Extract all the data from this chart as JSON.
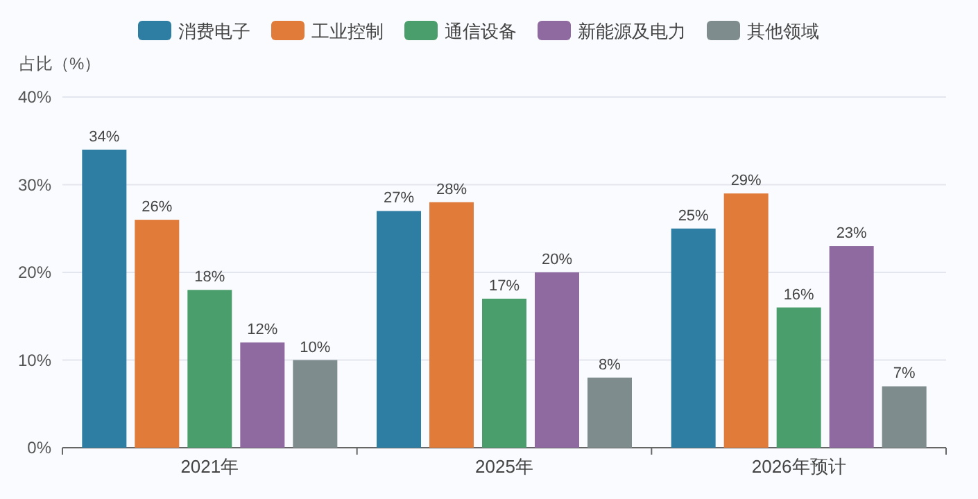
{
  "chart_data": {
    "type": "bar",
    "ylabel": "占比（%）",
    "categories": [
      "2021年",
      "2025年",
      "2026年预计"
    ],
    "series": [
      {
        "name": "消费电子",
        "color": "#2e7ea3",
        "values": [
          34,
          27,
          25
        ],
        "value_labels": [
          "34%",
          "27%",
          "25%"
        ]
      },
      {
        "name": "工业控制",
        "color": "#e07b39",
        "values": [
          26,
          28,
          29
        ],
        "value_labels": [
          "26%",
          "28%",
          "29%"
        ]
      },
      {
        "name": "通信设备",
        "color": "#4a9e6b",
        "values": [
          18,
          17,
          16
        ],
        "value_labels": [
          "18%",
          "17%",
          "16%"
        ]
      },
      {
        "name": "新能源及电力",
        "color": "#8e6aa0",
        "values": [
          12,
          20,
          23
        ],
        "value_labels": [
          "12%",
          "20%",
          "23%"
        ]
      },
      {
        "name": "其他领域",
        "color": "#7f8c8d",
        "values": [
          10,
          8,
          7
        ],
        "value_labels": [
          "10%",
          "8%",
          "7%"
        ]
      }
    ],
    "ylim": [
      0,
      40
    ],
    "yticks": [
      {
        "value": 0,
        "label": "0%"
      },
      {
        "value": 10,
        "label": "10%"
      },
      {
        "value": 20,
        "label": "20%"
      },
      {
        "value": 30,
        "label": "30%"
      },
      {
        "value": 40,
        "label": "40%"
      }
    ],
    "grid": "y",
    "legend": "top"
  }
}
